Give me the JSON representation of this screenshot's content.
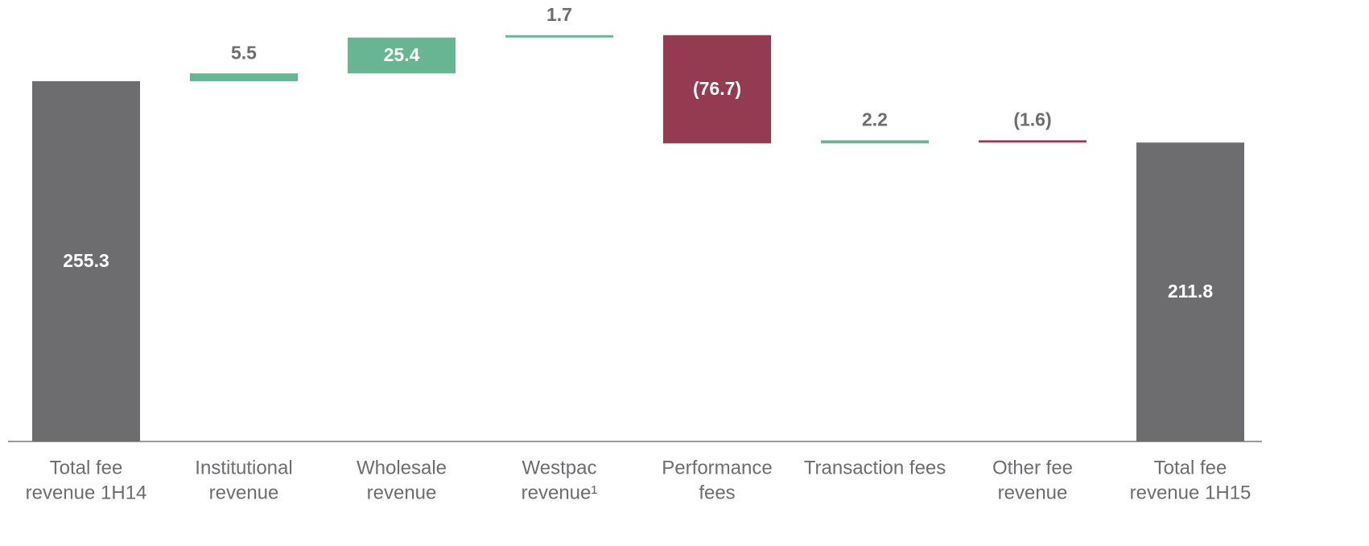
{
  "chart_data": {
    "type": "waterfall",
    "categories": [
      [
        "Total fee",
        "revenue 1H14"
      ],
      [
        "Institutional",
        "revenue"
      ],
      [
        "Wholesale",
        "revenue"
      ],
      [
        "Westpac",
        "revenue¹"
      ],
      [
        "Performance",
        "fees"
      ],
      [
        "Transaction fees"
      ],
      [
        "Other fee",
        "revenue"
      ],
      [
        "Total fee",
        "revenue 1H15"
      ]
    ],
    "values": [
      255.3,
      5.5,
      25.4,
      1.7,
      -76.7,
      2.2,
      -1.6,
      211.8
    ],
    "value_labels": [
      "255.3",
      "5.5",
      "25.4",
      "1.7",
      "(76.7)",
      "2.2",
      "(1.6)",
      "211.8"
    ],
    "totals": [
      true,
      false,
      false,
      false,
      false,
      false,
      false,
      true
    ],
    "colors": {
      "total": "#6d6d6f",
      "increase": "#67b592",
      "decrease": "#943b52"
    },
    "ylim": [
      0,
      312.8
    ]
  }
}
